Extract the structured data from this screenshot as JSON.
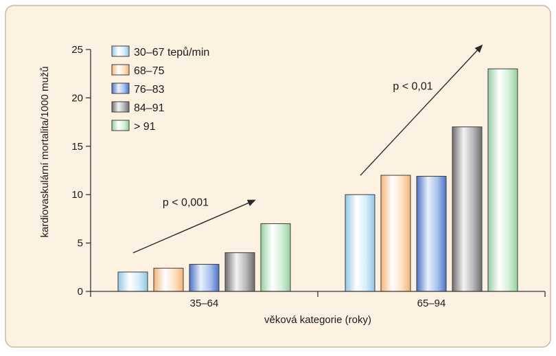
{
  "colors": {
    "background": "#fdf1e2",
    "border": "#c8b8a6",
    "axis": "#333333",
    "arrow": "#2a2a2a"
  },
  "chart_data": {
    "type": "bar",
    "ylabel": "kardiovaskulární mortalita/1000 mužů",
    "xlabel": "věková kategorie (roky)",
    "ylim": [
      0,
      25
    ],
    "yticks": [
      "0",
      "5",
      "10",
      "15",
      "20",
      "25"
    ],
    "categories": [
      "35–64",
      "65–94"
    ],
    "legend_position": "top-left",
    "grid": false,
    "series": [
      {
        "name": "30–67 tepů/min",
        "values": [
          2.0,
          10.0
        ],
        "color": "#d6eefa",
        "edge": "#ffffff",
        "dark": "#93c6e2"
      },
      {
        "name": "68–75",
        "values": [
          2.4,
          12.0
        ],
        "color": "#fde3c6",
        "edge": "#ffffff",
        "dark": "#f3b477"
      },
      {
        "name": "76–83",
        "values": [
          2.8,
          11.9
        ],
        "color": "#a9c3ee",
        "edge": "#e8f0fc",
        "dark": "#4d71c3"
      },
      {
        "name": "84–91",
        "values": [
          4.0,
          17.0
        ],
        "color": "#b9b9b9",
        "edge": "#f3f3f3",
        "dark": "#6e6e6e"
      },
      {
        "name": "> 91",
        "values": [
          7.0,
          23.0
        ],
        "color": "#d6f0da",
        "edge": "#ffffff",
        "dark": "#97cf9f"
      }
    ],
    "annotations": [
      {
        "text": "p < 0,001",
        "group": 0
      },
      {
        "text": "p < 0,01",
        "group": 1
      }
    ]
  }
}
